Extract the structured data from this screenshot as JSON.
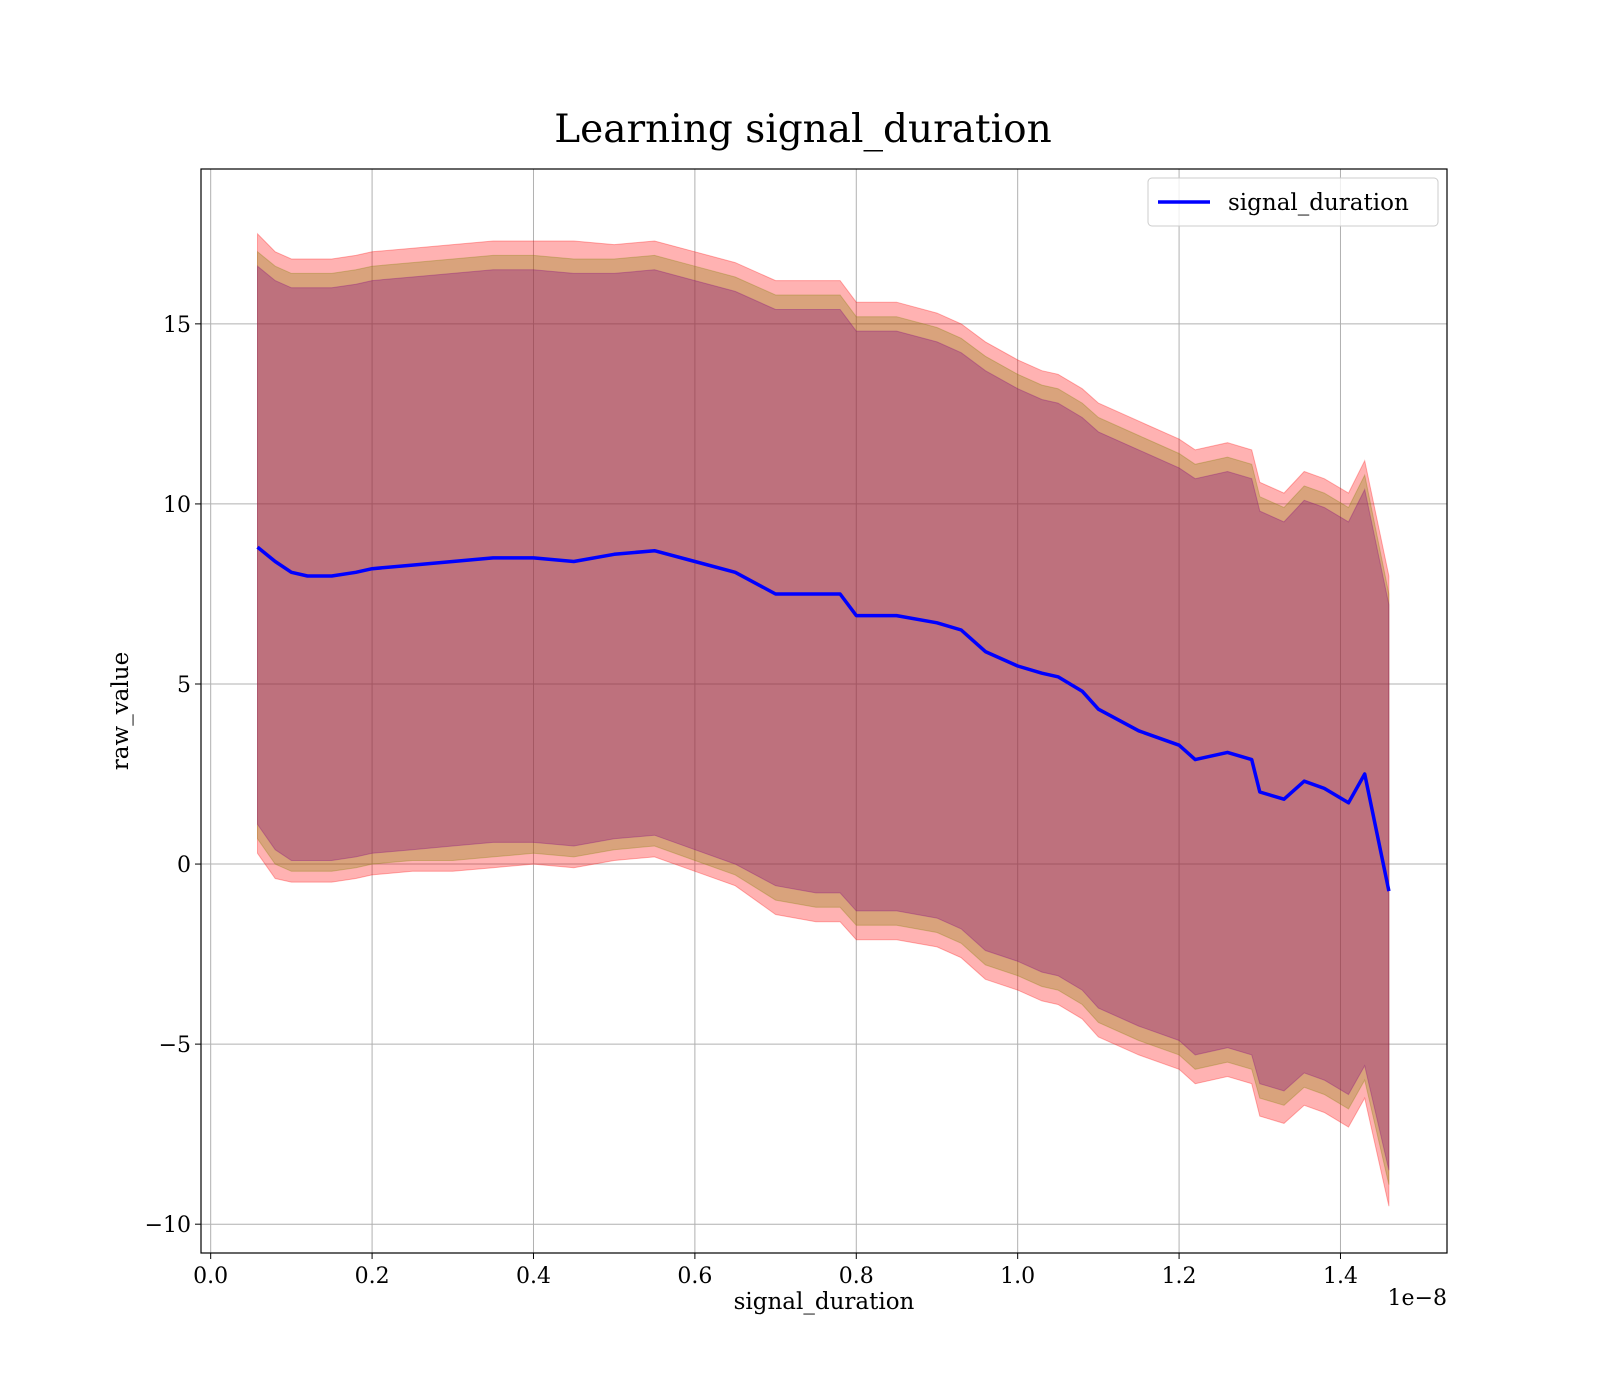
{
  "chart_data": {
    "type": "line",
    "title": "Learning signal_duration",
    "xlabel": "signal_duration",
    "ylabel": "raw_value",
    "x_offset_text": "1e−8",
    "xlim": [
      -0.012,
      1.532
    ],
    "ylim": [
      -10.8,
      19.3
    ],
    "x_ticks": [
      0.0,
      0.2,
      0.4,
      0.6,
      0.8,
      1.0,
      1.2,
      1.4
    ],
    "x_tick_labels": [
      "0.0",
      "0.2",
      "0.4",
      "0.6",
      "0.8",
      "1.0",
      "1.2",
      "1.4"
    ],
    "y_ticks": [
      -10,
      -5,
      0,
      5,
      10,
      15
    ],
    "y_tick_labels": [
      "−10",
      "−5",
      "0",
      "5",
      "10",
      "15"
    ],
    "grid": true,
    "legend": {
      "placement": "top-right",
      "entries": [
        "signal_duration"
      ]
    },
    "colors": {
      "line": "#0000ff",
      "outer_band": "#ff0000",
      "middle_band": "#808000",
      "inner_band": "#800080"
    },
    "series": [
      {
        "name": "signal_duration",
        "x": [
          0.058,
          0.08,
          0.1,
          0.12,
          0.15,
          0.18,
          0.2,
          0.25,
          0.3,
          0.35,
          0.4,
          0.45,
          0.5,
          0.55,
          0.6,
          0.65,
          0.7,
          0.75,
          0.78,
          0.8,
          0.85,
          0.9,
          0.93,
          0.96,
          1.0,
          1.03,
          1.05,
          1.08,
          1.1,
          1.15,
          1.2,
          1.22,
          1.26,
          1.29,
          1.3,
          1.33,
          1.355,
          1.38,
          1.41,
          1.43,
          1.46
        ],
        "y": [
          8.8,
          8.4,
          8.1,
          8.0,
          8.0,
          8.1,
          8.2,
          8.3,
          8.4,
          8.5,
          8.5,
          8.4,
          8.6,
          8.7,
          8.4,
          8.1,
          7.5,
          7.5,
          7.5,
          6.9,
          6.9,
          6.7,
          6.5,
          5.9,
          5.5,
          5.3,
          5.2,
          4.8,
          4.3,
          3.7,
          3.3,
          2.9,
          3.1,
          2.9,
          2.0,
          1.8,
          2.3,
          2.1,
          1.7,
          2.5,
          -0.75
        ]
      }
    ],
    "bands": [
      {
        "role": "outer",
        "lower": [
          0.3,
          -0.4,
          -0.5,
          -0.5,
          -0.5,
          -0.4,
          -0.3,
          -0.2,
          -0.2,
          -0.1,
          0.0,
          -0.1,
          0.1,
          0.2,
          -0.2,
          -0.6,
          -1.4,
          -1.6,
          -1.6,
          -2.1,
          -2.1,
          -2.3,
          -2.6,
          -3.2,
          -3.5,
          -3.8,
          -3.9,
          -4.3,
          -4.8,
          -5.3,
          -5.7,
          -6.1,
          -5.9,
          -6.1,
          -7.0,
          -7.2,
          -6.7,
          -6.9,
          -7.3,
          -6.5,
          -9.5
        ],
        "upper": [
          17.5,
          17.0,
          16.8,
          16.8,
          16.8,
          16.9,
          17.0,
          17.1,
          17.2,
          17.3,
          17.3,
          17.3,
          17.2,
          17.3,
          17.0,
          16.7,
          16.2,
          16.2,
          16.2,
          15.6,
          15.6,
          15.3,
          15.0,
          14.5,
          14.0,
          13.7,
          13.6,
          13.2,
          12.8,
          12.3,
          11.8,
          11.5,
          11.7,
          11.5,
          10.6,
          10.3,
          10.9,
          10.7,
          10.3,
          11.2,
          8.0
        ]
      },
      {
        "role": "middle",
        "lower": [
          0.7,
          0.0,
          -0.2,
          -0.2,
          -0.2,
          -0.1,
          0.0,
          0.1,
          0.1,
          0.2,
          0.3,
          0.2,
          0.4,
          0.5,
          0.1,
          -0.3,
          -1.0,
          -1.2,
          -1.2,
          -1.7,
          -1.7,
          -1.9,
          -2.2,
          -2.8,
          -3.1,
          -3.4,
          -3.5,
          -3.9,
          -4.4,
          -4.9,
          -5.3,
          -5.7,
          -5.5,
          -5.7,
          -6.5,
          -6.7,
          -6.2,
          -6.4,
          -6.8,
          -6.0,
          -8.9
        ],
        "upper": [
          17.0,
          16.6,
          16.4,
          16.4,
          16.4,
          16.5,
          16.6,
          16.7,
          16.8,
          16.9,
          16.9,
          16.8,
          16.8,
          16.9,
          16.6,
          16.3,
          15.8,
          15.8,
          15.8,
          15.2,
          15.2,
          14.9,
          14.6,
          14.1,
          13.6,
          13.3,
          13.2,
          12.8,
          12.4,
          11.9,
          11.4,
          11.1,
          11.3,
          11.1,
          10.2,
          9.9,
          10.5,
          10.3,
          9.9,
          10.8,
          7.5
        ]
      },
      {
        "role": "inner",
        "lower": [
          1.1,
          0.4,
          0.1,
          0.1,
          0.1,
          0.2,
          0.3,
          0.4,
          0.5,
          0.6,
          0.6,
          0.5,
          0.7,
          0.8,
          0.4,
          0.0,
          -0.6,
          -0.8,
          -0.8,
          -1.3,
          -1.3,
          -1.5,
          -1.8,
          -2.4,
          -2.7,
          -3.0,
          -3.1,
          -3.5,
          -4.0,
          -4.5,
          -4.9,
          -5.3,
          -5.1,
          -5.3,
          -6.1,
          -6.3,
          -5.8,
          -6.0,
          -6.4,
          -5.6,
          -8.5
        ],
        "upper": [
          16.6,
          16.2,
          16.0,
          16.0,
          16.0,
          16.1,
          16.2,
          16.3,
          16.4,
          16.5,
          16.5,
          16.4,
          16.4,
          16.5,
          16.2,
          15.9,
          15.4,
          15.4,
          15.4,
          14.8,
          14.8,
          14.5,
          14.2,
          13.7,
          13.2,
          12.9,
          12.8,
          12.4,
          12.0,
          11.5,
          11.0,
          10.7,
          10.9,
          10.7,
          9.8,
          9.5,
          10.1,
          9.9,
          9.5,
          10.4,
          7.2
        ]
      }
    ]
  }
}
